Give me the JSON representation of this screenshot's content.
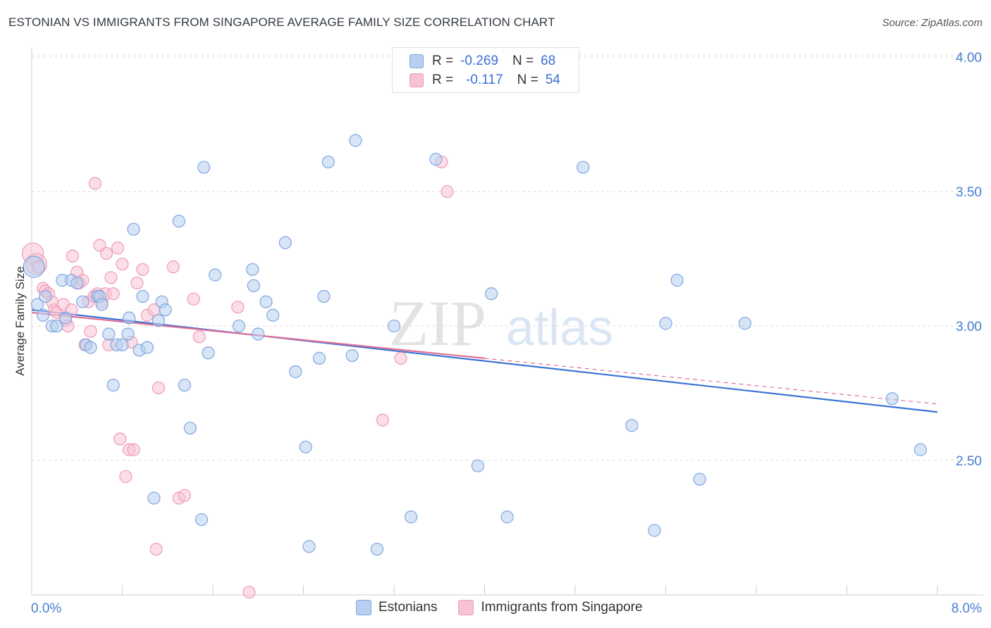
{
  "title": "ESTONIAN VS IMMIGRANTS FROM SINGAPORE AVERAGE FAMILY SIZE CORRELATION CHART",
  "source": "Source: ZipAtlas.com",
  "watermark": {
    "zip": "ZIP",
    "atlas": "atlas"
  },
  "legend": {
    "rows": [
      {
        "r_label": "R =",
        "r_value": "-0.269",
        "n_label": "N =",
        "n_value": "68"
      },
      {
        "r_label": "R =",
        "r_value": "-0.117",
        "n_label": "N =",
        "n_value": "54"
      }
    ],
    "bottom": [
      "Estonians",
      "Immigrants from Singapore"
    ]
  },
  "colors": {
    "blue_fill": "#b8cff0",
    "blue_stroke": "#7fa6e0",
    "blue_line": "#3b74d6",
    "pink_fill": "#f7c3d3",
    "pink_stroke": "#ee9cb6",
    "pink_line": "#e07096",
    "axis_text": "#4a7fd0"
  },
  "chart_data": {
    "type": "scatter",
    "title": "ESTONIAN VS IMMIGRANTS FROM SINGAPORE AVERAGE FAMILY SIZE CORRELATION CHART",
    "xlabel": "",
    "ylabel": "Average Family Size",
    "xlim": [
      0,
      8.0
    ],
    "ylim": [
      2.0,
      4.05
    ],
    "x_tick_labels": [
      "0.0%",
      "8.0%"
    ],
    "y_ticks": [
      2.5,
      3.0,
      3.5,
      4.0
    ],
    "y_tick_labels": [
      "2.50",
      "3.00",
      "3.50",
      "4.00"
    ],
    "series": [
      {
        "name": "Estonians",
        "R": -0.269,
        "N": 68,
        "trend": {
          "x0": 0.0,
          "y0": 3.06,
          "x1": 8.0,
          "y1": 2.68
        },
        "points": [
          [
            0.02,
            3.22
          ],
          [
            0.05,
            3.08
          ],
          [
            0.1,
            3.04
          ],
          [
            0.12,
            3.11
          ],
          [
            0.18,
            3.0
          ],
          [
            0.22,
            3.0
          ],
          [
            0.3,
            3.03
          ],
          [
            0.27,
            3.17
          ],
          [
            0.35,
            3.17
          ],
          [
            0.4,
            3.16
          ],
          [
            0.45,
            3.09
          ],
          [
            0.48,
            2.93
          ],
          [
            0.52,
            2.92
          ],
          [
            0.58,
            3.11
          ],
          [
            0.6,
            3.11
          ],
          [
            0.62,
            3.08
          ],
          [
            0.68,
            2.97
          ],
          [
            0.72,
            2.78
          ],
          [
            0.75,
            2.93
          ],
          [
            0.8,
            2.93
          ],
          [
            0.85,
            2.97
          ],
          [
            0.86,
            3.03
          ],
          [
            0.9,
            3.36
          ],
          [
            0.95,
            2.91
          ],
          [
            0.98,
            3.11
          ],
          [
            1.02,
            2.92
          ],
          [
            1.08,
            2.36
          ],
          [
            1.12,
            3.02
          ],
          [
            1.15,
            3.09
          ],
          [
            1.18,
            3.06
          ],
          [
            1.3,
            3.39
          ],
          [
            1.35,
            2.78
          ],
          [
            1.4,
            2.62
          ],
          [
            1.5,
            2.28
          ],
          [
            1.52,
            3.59
          ],
          [
            1.56,
            2.9
          ],
          [
            1.62,
            3.19
          ],
          [
            1.83,
            3.0
          ],
          [
            1.95,
            3.21
          ],
          [
            1.96,
            3.15
          ],
          [
            2.0,
            2.97
          ],
          [
            2.07,
            3.09
          ],
          [
            2.13,
            3.04
          ],
          [
            2.24,
            3.31
          ],
          [
            2.33,
            2.83
          ],
          [
            2.42,
            2.55
          ],
          [
            2.45,
            2.18
          ],
          [
            2.54,
            2.88
          ],
          [
            2.58,
            3.11
          ],
          [
            2.62,
            3.61
          ],
          [
            2.83,
            2.89
          ],
          [
            2.86,
            3.69
          ],
          [
            3.05,
            2.17
          ],
          [
            3.2,
            3.0
          ],
          [
            3.35,
            2.29
          ],
          [
            3.57,
            3.62
          ],
          [
            3.94,
            2.48
          ],
          [
            4.06,
            3.12
          ],
          [
            4.2,
            2.29
          ],
          [
            4.87,
            3.59
          ],
          [
            5.3,
            2.63
          ],
          [
            5.5,
            2.24
          ],
          [
            5.6,
            3.01
          ],
          [
            5.7,
            3.17
          ],
          [
            5.9,
            2.43
          ],
          [
            6.3,
            3.01
          ],
          [
            7.6,
            2.73
          ],
          [
            7.85,
            2.54
          ]
        ]
      },
      {
        "name": "Immigrants from Singapore",
        "R": -0.117,
        "N": 54,
        "trend": {
          "x0": 0.0,
          "y0": 3.05,
          "x1": 4.0,
          "y1": 2.88
        },
        "dashed_extension": {
          "x0": 4.0,
          "y0": 2.88,
          "x1": 8.0,
          "y1": 2.71
        },
        "points": [
          [
            0.01,
            3.27
          ],
          [
            0.04,
            3.23
          ],
          [
            0.06,
            3.22
          ],
          [
            0.1,
            3.14
          ],
          [
            0.12,
            3.13
          ],
          [
            0.15,
            3.12
          ],
          [
            0.18,
            3.09
          ],
          [
            0.2,
            3.06
          ],
          [
            0.22,
            3.05
          ],
          [
            0.28,
            3.08
          ],
          [
            0.3,
            3.02
          ],
          [
            0.32,
            3.0
          ],
          [
            0.35,
            3.06
          ],
          [
            0.36,
            3.26
          ],
          [
            0.4,
            3.2
          ],
          [
            0.42,
            3.16
          ],
          [
            0.45,
            3.17
          ],
          [
            0.47,
            2.93
          ],
          [
            0.5,
            3.09
          ],
          [
            0.52,
            2.98
          ],
          [
            0.55,
            3.11
          ],
          [
            0.56,
            3.53
          ],
          [
            0.58,
            3.12
          ],
          [
            0.6,
            3.3
          ],
          [
            0.62,
            3.09
          ],
          [
            0.65,
            3.12
          ],
          [
            0.66,
            3.27
          ],
          [
            0.68,
            2.93
          ],
          [
            0.7,
            3.18
          ],
          [
            0.72,
            3.12
          ],
          [
            0.76,
            3.29
          ],
          [
            0.78,
            2.58
          ],
          [
            0.8,
            3.23
          ],
          [
            0.83,
            2.44
          ],
          [
            0.86,
            2.54
          ],
          [
            0.88,
            2.94
          ],
          [
            0.9,
            2.54
          ],
          [
            0.93,
            3.16
          ],
          [
            0.98,
            3.21
          ],
          [
            1.02,
            3.04
          ],
          [
            1.08,
            3.06
          ],
          [
            1.1,
            2.17
          ],
          [
            1.12,
            2.77
          ],
          [
            1.25,
            3.22
          ],
          [
            1.3,
            2.36
          ],
          [
            1.35,
            2.37
          ],
          [
            1.43,
            3.1
          ],
          [
            1.48,
            2.96
          ],
          [
            1.82,
            3.07
          ],
          [
            1.92,
            2.01
          ],
          [
            3.26,
            2.88
          ],
          [
            3.1,
            2.65
          ],
          [
            3.62,
            3.61
          ],
          [
            3.67,
            3.5
          ]
        ]
      }
    ]
  }
}
